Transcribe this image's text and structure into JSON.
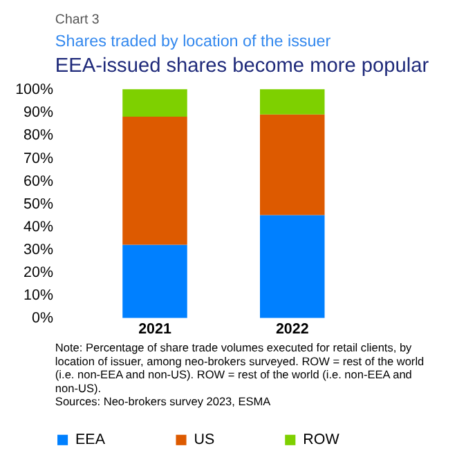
{
  "chart_data": {
    "type": "bar",
    "stacked": true,
    "title": "Shares traded by location of the issuer",
    "subtitle": "EEA-issued shares become more popular",
    "categories": [
      "2021",
      "2022"
    ],
    "series": [
      {
        "name": "EEA",
        "color": "#0080ff",
        "values": [
          32,
          45
        ]
      },
      {
        "name": "US",
        "color": "#dd5a00",
        "values": [
          56,
          44
        ]
      },
      {
        "name": "ROW",
        "color": "#7ed000",
        "values": [
          12,
          11
        ]
      }
    ],
    "ylim": [
      0,
      100
    ],
    "yticks": [
      {
        "value": 0,
        "label": "0%"
      },
      {
        "value": 10,
        "label": "10%"
      },
      {
        "value": 20,
        "label": "20%"
      },
      {
        "value": 30,
        "label": "30%"
      },
      {
        "value": 40,
        "label": "40%"
      },
      {
        "value": 50,
        "label": "50%"
      },
      {
        "value": 60,
        "label": "60%"
      },
      {
        "value": 70,
        "label": "70%"
      },
      {
        "value": 80,
        "label": "80%"
      },
      {
        "value": 90,
        "label": "90%"
      },
      {
        "value": 100,
        "label": "100%"
      }
    ],
    "grid": false,
    "legend": "bottom",
    "annotations": [
      "Chart 3",
      "Note: Percentage of share trade volumes executed for retail clients, by location of issuer, among neo-brokers surveyed. ROW = rest of the world (i.e. non-EEA and non-US). ROW = rest of the world (i.e. non-EEA and non-US).",
      "Sources: Neo-brokers survey 2023, ESMA"
    ]
  }
}
